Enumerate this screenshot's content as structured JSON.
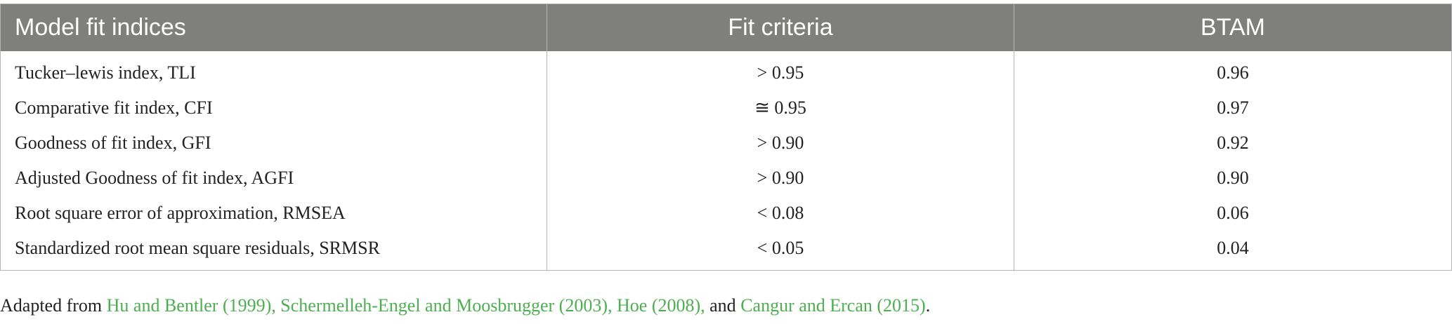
{
  "table": {
    "header": [
      "Model fit indices",
      "Fit criteria",
      "BTAM"
    ],
    "rows": [
      [
        "Tucker–lewis index, TLI",
        "> 0.95",
        "0.96"
      ],
      [
        "Comparative fit index, CFI",
        "≅ 0.95",
        "0.97"
      ],
      [
        "Goodness of fit index, GFI",
        "> 0.90",
        "0.92"
      ],
      [
        "Adjusted Goodness of fit index, AGFI",
        "> 0.90",
        "0.90"
      ],
      [
        "Root square error of approximation, RMSEA",
        "< 0.08",
        "0.06"
      ],
      [
        "Standardized root mean square residuals, SRMSR",
        "< 0.05",
        "0.04"
      ]
    ]
  },
  "footnote": {
    "segments": [
      {
        "text": "Adapted from "
      },
      {
        "text": "Hu and Bentler (1999)",
        "link": true
      },
      {
        "text": ", ",
        "link": true
      },
      {
        "text": "Schermelleh-Engel and Moosbrugger (2003)",
        "link": true
      },
      {
        "text": ", ",
        "link": true
      },
      {
        "text": "Hoe (2008)",
        "link": true
      },
      {
        "text": ",",
        "link": true
      },
      {
        "text": " and "
      },
      {
        "text": "Cangur and Ercan (2015)",
        "link": true
      },
      {
        "text": "."
      }
    ]
  }
}
